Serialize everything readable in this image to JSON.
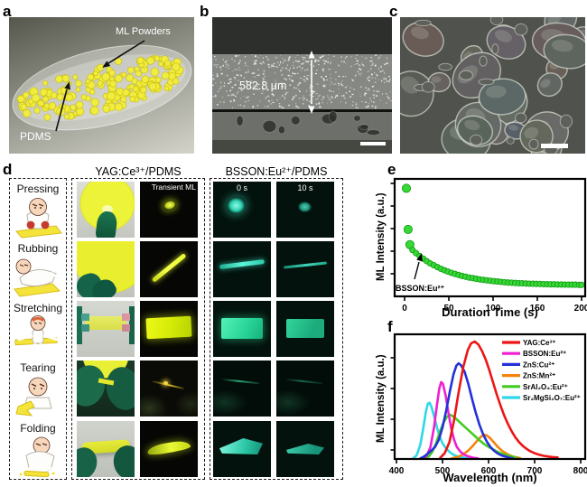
{
  "figure": {
    "panel_labels": {
      "a": "a",
      "b": "b",
      "c": "c",
      "d": "d",
      "e": "e",
      "f": "f"
    }
  },
  "panel_a": {
    "label_ml_powders": "ML Powders",
    "label_pdms": "PDMS",
    "powder_color": "#f2ee3d"
  },
  "panel_b": {
    "thickness_label": "582.8 μm"
  },
  "panel_d": {
    "col_headers": [
      "YAG:Ce³⁺/PDMS",
      "BSSON:Eu²⁺/PDMS"
    ],
    "sub_labels": {
      "transient": "Transient ML",
      "t0": "0 s",
      "t10": "10 s"
    },
    "actions": [
      "Pressing",
      "Rubbing",
      "Stretching",
      "Tearing",
      "Folding"
    ]
  },
  "chart_data": [
    {
      "panel": "e",
      "type": "scatter",
      "xlabel": "Duration Time (s)",
      "ylabel": "ML Intensity (a.u.)",
      "xlim": [
        0,
        200
      ],
      "xticks": [
        0,
        50,
        100,
        150,
        200
      ],
      "grid": false,
      "annotation": "BSSON:Eu²⁺",
      "marker_color": "#38d838",
      "marker_edge": "#14a014",
      "points": [
        [
          2,
          0.92
        ],
        [
          4,
          0.57
        ],
        [
          6,
          0.44
        ],
        [
          9,
          0.395
        ],
        [
          13,
          0.368
        ],
        [
          17,
          0.343
        ],
        [
          21,
          0.321
        ],
        [
          25,
          0.3
        ],
        [
          29,
          0.281
        ],
        [
          33,
          0.265
        ],
        [
          37,
          0.249
        ],
        [
          41,
          0.235
        ],
        [
          45,
          0.222
        ],
        [
          49,
          0.211
        ],
        [
          53,
          0.2
        ],
        [
          57,
          0.191
        ],
        [
          61,
          0.182
        ],
        [
          65,
          0.174
        ],
        [
          69,
          0.167
        ],
        [
          73,
          0.16
        ],
        [
          77,
          0.155
        ],
        [
          81,
          0.149
        ],
        [
          85,
          0.144
        ],
        [
          89,
          0.14
        ],
        [
          93,
          0.136
        ],
        [
          97,
          0.132
        ],
        [
          101,
          0.129
        ],
        [
          105,
          0.126
        ],
        [
          109,
          0.123
        ],
        [
          113,
          0.12
        ],
        [
          117,
          0.118
        ],
        [
          121,
          0.116
        ],
        [
          125,
          0.114
        ],
        [
          129,
          0.112
        ],
        [
          133,
          0.111
        ],
        [
          137,
          0.109
        ],
        [
          141,
          0.108
        ],
        [
          145,
          0.107
        ],
        [
          149,
          0.106
        ],
        [
          153,
          0.105
        ],
        [
          157,
          0.104
        ],
        [
          161,
          0.103
        ],
        [
          165,
          0.102
        ],
        [
          169,
          0.102
        ],
        [
          173,
          0.101
        ],
        [
          177,
          0.101
        ],
        [
          181,
          0.1
        ],
        [
          185,
          0.1
        ],
        [
          189,
          0.099
        ],
        [
          193,
          0.099
        ],
        [
          197,
          0.098
        ],
        [
          200,
          0.098
        ]
      ]
    },
    {
      "panel": "f",
      "type": "line",
      "xlabel": "Wavelength (nm)",
      "ylabel": "ML Intensity (a.u.)",
      "xlim": [
        400,
        800
      ],
      "xticks": [
        400,
        500,
        600,
        700,
        800
      ],
      "grid": false,
      "legend_position": "top-right",
      "series": [
        {
          "name": "YAG:Ce³⁺",
          "color": "#ed1515",
          "points": [
            [
              495,
              0.01
            ],
            [
              505,
              0.05
            ],
            [
              515,
              0.14
            ],
            [
              525,
              0.32
            ],
            [
              535,
              0.55
            ],
            [
              545,
              0.76
            ],
            [
              555,
              0.9
            ],
            [
              562,
              0.955
            ],
            [
              570,
              0.97
            ],
            [
              578,
              0.945
            ],
            [
              586,
              0.89
            ],
            [
              594,
              0.82
            ],
            [
              602,
              0.73
            ],
            [
              610,
              0.63
            ],
            [
              618,
              0.53
            ],
            [
              626,
              0.44
            ],
            [
              634,
              0.36
            ],
            [
              642,
              0.29
            ],
            [
              650,
              0.23
            ],
            [
              658,
              0.18
            ],
            [
              666,
              0.14
            ],
            [
              674,
              0.11
            ],
            [
              682,
              0.085
            ],
            [
              690,
              0.065
            ],
            [
              700,
              0.048
            ],
            [
              710,
              0.035
            ],
            [
              720,
              0.026
            ],
            [
              730,
              0.02
            ],
            [
              740,
              0.016
            ],
            [
              750,
              0.013
            ]
          ]
        },
        {
          "name": "BSSON:Eu²⁺",
          "color": "#ee1fd1",
          "points": [
            [
              458,
              0.005
            ],
            [
              466,
              0.03
            ],
            [
              474,
              0.1
            ],
            [
              482,
              0.27
            ],
            [
              488,
              0.45
            ],
            [
              493,
              0.58
            ],
            [
              497,
              0.635
            ],
            [
              501,
              0.62
            ],
            [
              507,
              0.52
            ],
            [
              513,
              0.38
            ],
            [
              519,
              0.25
            ],
            [
              525,
              0.16
            ],
            [
              531,
              0.1
            ],
            [
              539,
              0.06
            ],
            [
              547,
              0.035
            ],
            [
              557,
              0.02
            ],
            [
              567,
              0.01
            ],
            [
              577,
              0.005
            ]
          ]
        },
        {
          "name": "ZnS:Cu²⁺",
          "color": "#2431d8",
          "points": [
            [
              452,
              0.005
            ],
            [
              460,
              0.02
            ],
            [
              468,
              0.045
            ],
            [
              476,
              0.07
            ],
            [
              484,
              0.1
            ],
            [
              492,
              0.16
            ],
            [
              500,
              0.26
            ],
            [
              508,
              0.4
            ],
            [
              516,
              0.56
            ],
            [
              524,
              0.7
            ],
            [
              530,
              0.77
            ],
            [
              535,
              0.79
            ],
            [
              540,
              0.775
            ],
            [
              548,
              0.72
            ],
            [
              556,
              0.62
            ],
            [
              564,
              0.5
            ],
            [
              572,
              0.385
            ],
            [
              580,
              0.285
            ],
            [
              588,
              0.205
            ],
            [
              596,
              0.145
            ],
            [
              604,
              0.1
            ],
            [
              612,
              0.068
            ],
            [
              620,
              0.045
            ],
            [
              628,
              0.03
            ],
            [
              636,
              0.02
            ],
            [
              644,
              0.012
            ],
            [
              652,
              0.007
            ]
          ]
        },
        {
          "name": "ZnS:Mn²⁺",
          "color": "#f5820b",
          "points": [
            [
              520,
              0.005
            ],
            [
              532,
              0.015
            ],
            [
              544,
              0.035
            ],
            [
              556,
              0.07
            ],
            [
              566,
              0.11
            ],
            [
              576,
              0.155
            ],
            [
              584,
              0.185
            ],
            [
              590,
              0.2
            ],
            [
              596,
              0.195
            ],
            [
              604,
              0.17
            ],
            [
              612,
              0.135
            ],
            [
              620,
              0.1
            ],
            [
              628,
              0.072
            ],
            [
              636,
              0.05
            ],
            [
              644,
              0.034
            ],
            [
              652,
              0.022
            ],
            [
              660,
              0.014
            ],
            [
              668,
              0.008
            ]
          ]
        },
        {
          "name": "SrAl₂O₄:Eu²⁺",
          "color": "#44cc22",
          "points": [
            [
              462,
              0.005
            ],
            [
              470,
              0.02
            ],
            [
              478,
              0.06
            ],
            [
              486,
              0.13
            ],
            [
              494,
              0.22
            ],
            [
              502,
              0.3
            ],
            [
              510,
              0.35
            ],
            [
              516,
              0.365
            ],
            [
              522,
              0.355
            ],
            [
              530,
              0.33
            ],
            [
              540,
              0.295
            ],
            [
              550,
              0.26
            ],
            [
              560,
              0.225
            ],
            [
              570,
              0.19
            ],
            [
              580,
              0.155
            ],
            [
              590,
              0.125
            ],
            [
              600,
              0.1
            ],
            [
              610,
              0.078
            ],
            [
              620,
              0.058
            ],
            [
              630,
              0.042
            ],
            [
              640,
              0.03
            ],
            [
              650,
              0.02
            ],
            [
              660,
              0.012
            ]
          ]
        },
        {
          "name": "Sr₂MgSi₂O₇:Eu²⁺",
          "color": "#2fd8e8",
          "points": [
            [
              436,
              0.005
            ],
            [
              444,
              0.03
            ],
            [
              452,
              0.12
            ],
            [
              458,
              0.25
            ],
            [
              464,
              0.39
            ],
            [
              468,
              0.455
            ],
            [
              472,
              0.465
            ],
            [
              476,
              0.43
            ],
            [
              482,
              0.35
            ],
            [
              488,
              0.26
            ],
            [
              494,
              0.185
            ],
            [
              500,
              0.13
            ],
            [
              508,
              0.085
            ],
            [
              516,
              0.055
            ],
            [
              524,
              0.035
            ],
            [
              534,
              0.02
            ],
            [
              544,
              0.012
            ],
            [
              554,
              0.006
            ]
          ]
        }
      ]
    }
  ]
}
